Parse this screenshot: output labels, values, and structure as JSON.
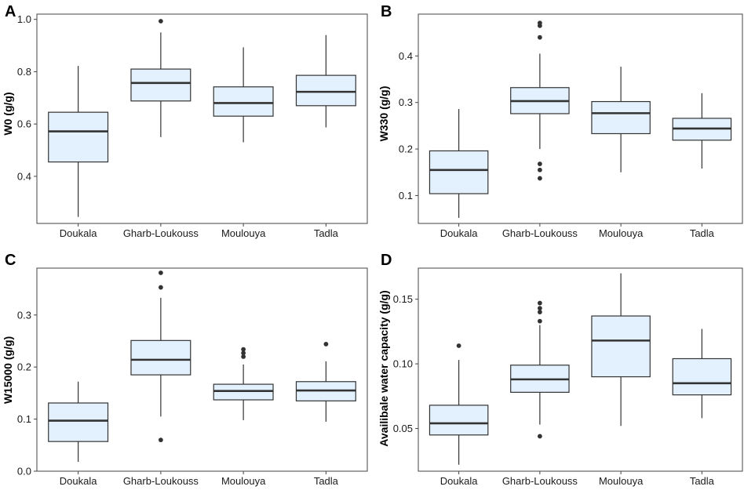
{
  "colors": {
    "box_fill": "#e2f1fd",
    "line": "#333333",
    "frame": "#444444"
  },
  "chart_data": [
    {
      "panel": "A",
      "type": "boxplot",
      "ylabel": "W0 (g/g)",
      "categories": [
        "Doukala",
        "Gharb-Loukouss",
        "Moulouya",
        "Tadla"
      ],
      "ylim": [
        0.22,
        1.02
      ],
      "yticks": [
        0.4,
        0.6,
        0.8,
        1.0
      ],
      "ytick_labels": [
        "0.4",
        "0.6",
        "0.8",
        "1.0"
      ],
      "boxes": [
        {
          "whisker_low": 0.245,
          "q1": 0.455,
          "median": 0.572,
          "q3": 0.645,
          "whisker_high": 0.822,
          "outliers": []
        },
        {
          "whisker_low": 0.55,
          "q1": 0.688,
          "median": 0.757,
          "q3": 0.81,
          "whisker_high": 0.95,
          "outliers": [
            0.993
          ]
        },
        {
          "whisker_low": 0.53,
          "q1": 0.63,
          "median": 0.68,
          "q3": 0.742,
          "whisker_high": 0.893,
          "outliers": []
        },
        {
          "whisker_low": 0.587,
          "q1": 0.67,
          "median": 0.723,
          "q3": 0.786,
          "whisker_high": 0.94,
          "outliers": []
        }
      ]
    },
    {
      "panel": "B",
      "type": "boxplot",
      "ylabel": "W330 (g/g)",
      "categories": [
        "Doukala",
        "Gharb-Loukouss",
        "Moulouya",
        "Tadla"
      ],
      "ylim": [
        0.04,
        0.49
      ],
      "yticks": [
        0.1,
        0.2,
        0.3,
        0.4
      ],
      "ytick_labels": [
        "0.1",
        "0.2",
        "0.3",
        "0.4"
      ],
      "boxes": [
        {
          "whisker_low": 0.052,
          "q1": 0.104,
          "median": 0.155,
          "q3": 0.196,
          "whisker_high": 0.286,
          "outliers": []
        },
        {
          "whisker_low": 0.2,
          "q1": 0.276,
          "median": 0.303,
          "q3": 0.332,
          "whisker_high": 0.405,
          "outliers": [
            0.471,
            0.465,
            0.44,
            0.168,
            0.155,
            0.137
          ]
        },
        {
          "whisker_low": 0.15,
          "q1": 0.233,
          "median": 0.277,
          "q3": 0.302,
          "whisker_high": 0.377,
          "outliers": []
        },
        {
          "whisker_low": 0.158,
          "q1": 0.219,
          "median": 0.244,
          "q3": 0.266,
          "whisker_high": 0.32,
          "outliers": []
        }
      ]
    },
    {
      "panel": "C",
      "type": "boxplot",
      "ylabel": "W15000 (g/g)",
      "categories": [
        "Doukala",
        "Gharb-Loukouss",
        "Moulouya",
        "Tadla"
      ],
      "ylim": [
        0.0,
        0.39
      ],
      "yticks": [
        0.0,
        0.1,
        0.2,
        0.3
      ],
      "ytick_labels": [
        "0.0",
        "0.1",
        "0.2",
        "0.3"
      ],
      "boxes": [
        {
          "whisker_low": 0.018,
          "q1": 0.057,
          "median": 0.097,
          "q3": 0.131,
          "whisker_high": 0.172,
          "outliers": []
        },
        {
          "whisker_low": 0.105,
          "q1": 0.185,
          "median": 0.214,
          "q3": 0.251,
          "whisker_high": 0.333,
          "outliers": [
            0.381,
            0.353,
            0.06
          ]
        },
        {
          "whisker_low": 0.098,
          "q1": 0.137,
          "median": 0.154,
          "q3": 0.167,
          "whisker_high": 0.205,
          "outliers": [
            0.234,
            0.227,
            0.22
          ]
        },
        {
          "whisker_low": 0.095,
          "q1": 0.135,
          "median": 0.155,
          "q3": 0.172,
          "whisker_high": 0.211,
          "outliers": [
            0.244
          ]
        }
      ]
    },
    {
      "panel": "D",
      "type": "boxplot",
      "ylabel": "Availibale water capacity (g/g)",
      "categories": [
        "Doukala",
        "Gharb-Loukouss",
        "Moulouya",
        "Tadla"
      ],
      "ylim": [
        0.017,
        0.174
      ],
      "yticks": [
        0.05,
        0.1,
        0.15
      ],
      "ytick_labels": [
        "0.05",
        "0.10",
        "0.15"
      ],
      "boxes": [
        {
          "whisker_low": 0.022,
          "q1": 0.045,
          "median": 0.054,
          "q3": 0.068,
          "whisker_high": 0.103,
          "outliers": [
            0.114
          ]
        },
        {
          "whisker_low": 0.053,
          "q1": 0.078,
          "median": 0.088,
          "q3": 0.099,
          "whisker_high": 0.13,
          "outliers": [
            0.147,
            0.143,
            0.14,
            0.133,
            0.044
          ]
        },
        {
          "whisker_low": 0.052,
          "q1": 0.09,
          "median": 0.118,
          "q3": 0.137,
          "whisker_high": 0.17,
          "outliers": []
        },
        {
          "whisker_low": 0.058,
          "q1": 0.076,
          "median": 0.085,
          "q3": 0.104,
          "whisker_high": 0.127,
          "outliers": []
        }
      ]
    }
  ]
}
